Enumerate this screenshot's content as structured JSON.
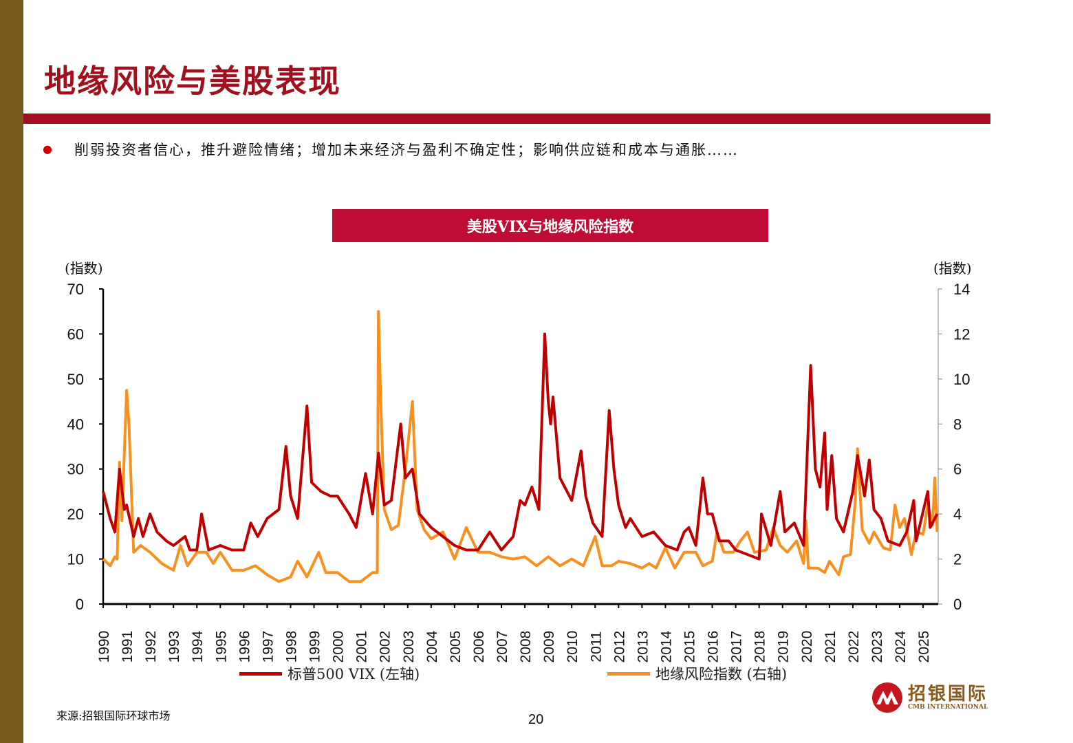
{
  "slide": {
    "title": "地缘风险与美股表现",
    "bullet": "削弱投资者信心，推升避险情绪；增加未来经济与盈利不确定性；影响供应链和成本与通胀……",
    "source": "来源:招银国际环球市场",
    "page_number": "20",
    "logo": {
      "cn": "招银国际",
      "en": "CMB INTERNATIONAL"
    }
  },
  "colors": {
    "sidebar": "#7a5a1e",
    "title": "#a0101e",
    "band": "#a50d22",
    "chart_title_bg": "#bf0d35",
    "vix": "#c00000",
    "gpr": "#f7901e"
  },
  "chart_data": {
    "type": "line",
    "title": "美股VIX与地缘风险指数",
    "left_axis": {
      "label": "(指数)",
      "ylim": [
        0,
        70
      ],
      "ticks": [
        0,
        10,
        20,
        30,
        40,
        50,
        60,
        70
      ]
    },
    "right_axis": {
      "label": "(指数)",
      "ylim": [
        0,
        14
      ],
      "ticks": [
        0,
        2,
        4,
        6,
        8,
        10,
        12,
        14
      ]
    },
    "x_ticks": [
      "1990",
      "1991",
      "1992",
      "1993",
      "1994",
      "1995",
      "1996",
      "1997",
      "1998",
      "1999",
      "2000",
      "2001",
      "2002",
      "2003",
      "2004",
      "2005",
      "2006",
      "2007",
      "2008",
      "2009",
      "2010",
      "2011",
      "2012",
      "2013",
      "2014",
      "2015",
      "2016",
      "2017",
      "2018",
      "2019",
      "2020",
      "2021",
      "2022",
      "2023",
      "2024",
      "2025"
    ],
    "xlim": [
      1990,
      2025.6
    ],
    "legend_placement": "bottom",
    "series": [
      {
        "name": "标普500 VIX (左轴)",
        "axis": "left",
        "x": [
          1990.0,
          1990.3,
          1990.5,
          1990.7,
          1990.9,
          1991.0,
          1991.3,
          1991.5,
          1991.7,
          1992.0,
          1992.3,
          1992.7,
          1993.0,
          1993.5,
          1993.7,
          1994.0,
          1994.2,
          1994.5,
          1995.0,
          1995.5,
          1996.0,
          1996.3,
          1996.6,
          1997.0,
          1997.5,
          1997.8,
          1998.0,
          1998.3,
          1998.7,
          1998.9,
          1999.3,
          1999.7,
          2000.0,
          2000.5,
          2000.8,
          2001.2,
          2001.5,
          2001.75,
          2002.0,
          2002.3,
          2002.7,
          2002.9,
          2003.2,
          2003.5,
          2004.0,
          2004.5,
          2005.0,
          2005.5,
          2006.0,
          2006.5,
          2007.0,
          2007.5,
          2007.8,
          2008.0,
          2008.3,
          2008.6,
          2008.85,
          2009.0,
          2009.1,
          2009.2,
          2009.5,
          2009.8,
          2010.0,
          2010.4,
          2010.6,
          2010.9,
          2011.3,
          2011.6,
          2011.8,
          2012.0,
          2012.3,
          2012.5,
          2013.0,
          2013.5,
          2014.0,
          2014.5,
          2014.8,
          2015.0,
          2015.3,
          2015.6,
          2015.8,
          2016.0,
          2016.3,
          2016.7,
          2017.0,
          2017.5,
          2018.0,
          2018.1,
          2018.5,
          2018.9,
          2019.1,
          2019.5,
          2019.9,
          2020.2,
          2020.4,
          2020.6,
          2020.8,
          2020.9,
          2021.1,
          2021.3,
          2021.6,
          2022.0,
          2022.2,
          2022.5,
          2022.7,
          2022.9,
          2023.2,
          2023.5,
          2024.0,
          2024.3,
          2024.6,
          2024.7,
          2025.2,
          2025.3,
          2025.6
        ],
        "y": [
          25,
          19,
          16,
          30,
          21,
          22,
          15,
          19,
          15,
          20,
          16,
          14,
          13,
          15,
          12,
          12,
          20,
          12,
          13,
          12,
          12,
          18,
          15,
          19,
          21,
          35,
          24,
          19,
          44,
          27,
          25,
          24,
          24,
          20,
          17,
          29,
          20,
          33.5,
          22,
          23,
          40,
          28,
          30,
          20,
          17,
          15,
          13,
          12,
          12,
          16,
          12,
          15,
          23,
          22,
          26,
          21,
          60,
          45,
          40,
          46,
          28,
          25,
          23,
          34,
          24,
          18,
          15,
          43,
          30,
          22,
          17,
          19,
          15,
          16,
          13,
          12,
          16,
          17,
          13,
          28,
          20,
          20,
          14,
          14,
          12,
          11,
          10,
          20,
          13,
          25,
          16,
          18,
          13,
          53,
          30,
          26,
          38,
          21,
          33,
          19,
          16,
          25,
          33,
          24,
          32,
          21,
          19,
          14,
          13,
          16,
          23,
          14,
          25,
          17,
          20
        ]
      },
      {
        "name": "地缘风险指数 (右轴)",
        "axis": "right",
        "x": [
          1990.0,
          1990.3,
          1990.5,
          1990.6,
          1990.7,
          1990.8,
          1991.0,
          1991.1,
          1991.3,
          1991.6,
          1992.0,
          1992.5,
          1993.0,
          1993.3,
          1993.6,
          1994.0,
          1994.4,
          1994.7,
          1995.0,
          1995.5,
          1996.0,
          1996.5,
          1997.0,
          1997.5,
          1998.0,
          1998.3,
          1998.7,
          1999.2,
          1999.5,
          2000.0,
          2000.5,
          2001.0,
          2001.5,
          2001.7,
          2001.75,
          2001.85,
          2002.0,
          2002.3,
          2002.6,
          2002.9,
          2003.2,
          2003.4,
          2003.7,
          2004.0,
          2004.5,
          2005.0,
          2005.5,
          2006.0,
          2006.5,
          2007.0,
          2007.5,
          2008.0,
          2008.5,
          2009.0,
          2009.5,
          2010.0,
          2010.5,
          2011.0,
          2011.3,
          2011.7,
          2012.0,
          2012.5,
          2013.0,
          2013.3,
          2013.6,
          2014.0,
          2014.4,
          2014.8,
          2015.3,
          2015.6,
          2016.0,
          2016.2,
          2016.5,
          2016.9,
          2017.2,
          2017.5,
          2017.8,
          2018.3,
          2018.6,
          2018.9,
          2019.2,
          2019.6,
          2019.9,
          2020.0,
          2020.1,
          2020.5,
          2020.8,
          2021.0,
          2021.4,
          2021.6,
          2021.9,
          2022.1,
          2022.2,
          2022.4,
          2022.7,
          2022.9,
          2023.3,
          2023.6,
          2023.8,
          2024.0,
          2024.2,
          2024.5,
          2024.7,
          2025.0,
          2025.2,
          2025.4,
          2025.5,
          2025.6
        ],
        "y": [
          2,
          1.7,
          2.1,
          2,
          6.3,
          3.7,
          9.5,
          8,
          2.3,
          2.6,
          2.3,
          1.8,
          1.5,
          2.6,
          1.7,
          2.3,
          2.3,
          1.8,
          2.3,
          1.5,
          1.5,
          1.7,
          1.3,
          1.0,
          1.2,
          1.9,
          1.2,
          2.3,
          1.4,
          1.4,
          1.0,
          1.0,
          1.4,
          1.4,
          13.0,
          9,
          4.2,
          3.3,
          3.5,
          6,
          9,
          4.2,
          3.3,
          2.9,
          3.2,
          2.0,
          3.4,
          2.3,
          2.3,
          2.1,
          2.0,
          2.1,
          1.7,
          2.1,
          1.7,
          2.0,
          1.7,
          3.0,
          1.7,
          1.7,
          1.9,
          1.8,
          1.6,
          1.8,
          1.6,
          2.5,
          1.6,
          2.3,
          2.3,
          1.7,
          1.9,
          3.2,
          2.3,
          2.3,
          2.8,
          3.2,
          2.3,
          2.4,
          3.4,
          2.6,
          2.3,
          2.8,
          1.8,
          3.7,
          1.6,
          1.6,
          1.4,
          1.9,
          1.3,
          2.1,
          2.2,
          4.5,
          6.9,
          3.3,
          2.7,
          3.2,
          2.5,
          2.4,
          4.4,
          3.4,
          3.8,
          2.2,
          3.2,
          3.1,
          4.4,
          3.5,
          5.6,
          3.2
        ]
      }
    ]
  }
}
